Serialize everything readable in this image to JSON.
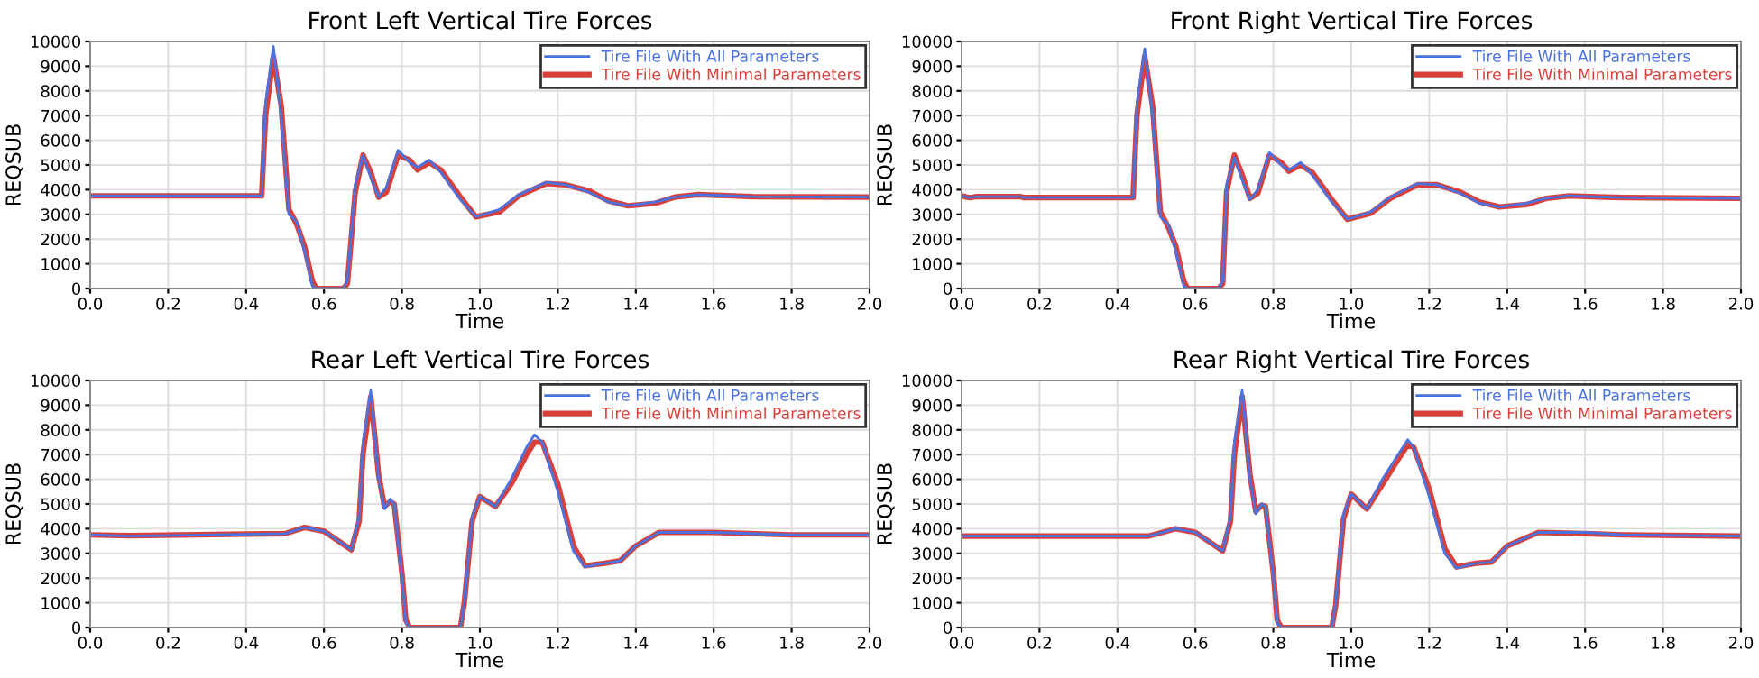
{
  "chart_data": [
    {
      "type": "line",
      "title": "Front Left Vertical Tire Forces",
      "xlabel": "Time",
      "ylabel": "REQSUB",
      "xlim": [
        0,
        2
      ],
      "ylim": [
        0,
        10000
      ],
      "xticks": [
        {
          "value": 0,
          "label": "0.0"
        },
        0.2,
        0.4,
        0.6,
        0.8,
        {
          "value": 1,
          "label": "1.0"
        },
        1.2,
        1.4,
        1.6,
        1.8,
        {
          "value": 2,
          "label": "2.0"
        }
      ],
      "yticks": [
        0,
        1000,
        2000,
        3000,
        4000,
        5000,
        6000,
        7000,
        8000,
        9000,
        10000
      ],
      "grid": true,
      "legend": "top right",
      "x": [
        0,
        0.44,
        0.45,
        0.47,
        0.49,
        0.51,
        0.53,
        0.55,
        0.57,
        0.58,
        0.65,
        0.66,
        0.68,
        0.7,
        0.72,
        0.74,
        0.76,
        0.79,
        0.82,
        0.84,
        0.87,
        0.9,
        0.95,
        0.99,
        1.05,
        1.1,
        1.17,
        1.22,
        1.28,
        1.33,
        1.38,
        1.45,
        1.5,
        1.56,
        1.65,
        1.7,
        2.0
      ],
      "series": [
        {
          "name": "Tire File With All Parameters",
          "color": "#4a72e0",
          "values": [
            3750,
            3750,
            7500,
            9800,
            7000,
            3000,
            2700,
            1500,
            100,
            0,
            0,
            300,
            4200,
            5400,
            4500,
            3700,
            4100,
            5600,
            5100,
            4900,
            5200,
            4700,
            3600,
            2900,
            3200,
            3800,
            4300,
            4200,
            3900,
            3500,
            3350,
            3500,
            3700,
            3800,
            3750,
            3720,
            3700
          ]
        },
        {
          "name": "Tire File With Minimal Parameters",
          "color": "#d9403a",
          "values": [
            3750,
            3750,
            7000,
            9400,
            7400,
            3200,
            2600,
            1700,
            300,
            0,
            0,
            200,
            3900,
            5400,
            4700,
            3700,
            3900,
            5400,
            5200,
            4800,
            5100,
            4800,
            3700,
            2900,
            3100,
            3750,
            4250,
            4200,
            3950,
            3550,
            3350,
            3450,
            3700,
            3800,
            3750,
            3720,
            3700
          ]
        }
      ]
    },
    {
      "type": "line",
      "title": "Front Right Vertical Tire Forces",
      "xlabel": "Time",
      "ylabel": "REQSUB",
      "xlim": [
        0,
        2
      ],
      "ylim": [
        0,
        10000
      ],
      "xticks": [
        {
          "value": 0,
          "label": "0.0"
        },
        0.2,
        0.4,
        0.6,
        0.8,
        {
          "value": 1,
          "label": "1.0"
        },
        1.2,
        1.4,
        1.6,
        1.8,
        {
          "value": 2,
          "label": "2.0"
        }
      ],
      "yticks": [
        0,
        1000,
        2000,
        3000,
        4000,
        5000,
        6000,
        7000,
        8000,
        9000,
        10000
      ],
      "grid": true,
      "legend": "top right",
      "x": [
        0,
        0.02,
        0.04,
        0.15,
        0.16,
        0.44,
        0.45,
        0.47,
        0.49,
        0.51,
        0.53,
        0.55,
        0.57,
        0.58,
        0.66,
        0.67,
        0.68,
        0.7,
        0.72,
        0.74,
        0.76,
        0.79,
        0.82,
        0.84,
        0.87,
        0.9,
        0.95,
        0.99,
        1.05,
        1.1,
        1.17,
        1.22,
        1.28,
        1.33,
        1.38,
        1.45,
        1.5,
        1.56,
        1.65,
        1.7,
        2.0
      ],
      "series": [
        {
          "name": "Tire File With All Parameters",
          "color": "#4a72e0",
          "values": [
            3750,
            3680,
            3720,
            3720,
            3680,
            3680,
            7500,
            9700,
            7000,
            2900,
            2600,
            1500,
            100,
            0,
            0,
            300,
            4200,
            5300,
            4400,
            3600,
            4000,
            5500,
            5000,
            4800,
            5100,
            4600,
            3500,
            2800,
            3100,
            3700,
            4250,
            4200,
            3850,
            3450,
            3300,
            3450,
            3650,
            3750,
            3700,
            3680,
            3650
          ]
        },
        {
          "name": "Tire File With Minimal Parameters",
          "color": "#d9403a",
          "values": [
            3750,
            3680,
            3720,
            3720,
            3680,
            3680,
            7000,
            9400,
            7400,
            3100,
            2500,
            1700,
            300,
            0,
            0,
            200,
            3900,
            5400,
            4600,
            3650,
            3850,
            5400,
            5100,
            4750,
            5000,
            4700,
            3600,
            2800,
            3050,
            3650,
            4200,
            4200,
            3900,
            3500,
            3300,
            3400,
            3650,
            3750,
            3700,
            3680,
            3650
          ]
        }
      ]
    },
    {
      "type": "line",
      "title": "Rear Left Vertical Tire Forces",
      "xlabel": "Time",
      "ylabel": "REQSUB",
      "xlim": [
        0,
        2
      ],
      "ylim": [
        0,
        10000
      ],
      "xticks": [
        {
          "value": 0,
          "label": "0.0"
        },
        0.2,
        0.4,
        0.6,
        0.8,
        {
          "value": 1,
          "label": "1.0"
        },
        1.2,
        1.4,
        1.6,
        1.8,
        {
          "value": 2,
          "label": "2.0"
        }
      ],
      "yticks": [
        0,
        1000,
        2000,
        3000,
        4000,
        5000,
        6000,
        7000,
        8000,
        9000,
        10000
      ],
      "grid": true,
      "legend": "top right",
      "x": [
        0,
        0.1,
        0.5,
        0.55,
        0.6,
        0.67,
        0.69,
        0.7,
        0.72,
        0.74,
        0.755,
        0.77,
        0.78,
        0.8,
        0.81,
        0.82,
        0.95,
        0.96,
        0.98,
        1.0,
        1.04,
        1.08,
        1.12,
        1.14,
        1.16,
        1.2,
        1.24,
        1.27,
        1.32,
        1.36,
        1.4,
        1.46,
        1.6,
        1.8,
        2.0
      ],
      "series": [
        {
          "name": "Tire File With All Parameters",
          "color": "#4a72e0",
          "values": [
            3750,
            3700,
            3800,
            4050,
            3900,
            3150,
            4500,
            7500,
            9600,
            6000,
            4800,
            5200,
            5000,
            2000,
            200,
            0,
            0,
            1000,
            4500,
            5300,
            4900,
            6000,
            7300,
            7800,
            7500,
            5500,
            3100,
            2450,
            2600,
            2700,
            3300,
            3850,
            3850,
            3750,
            3750
          ]
        },
        {
          "name": "Tire File With Minimal Parameters",
          "color": "#d9403a",
          "values": [
            3750,
            3720,
            3800,
            4050,
            3900,
            3150,
            4300,
            7000,
            9350,
            6200,
            4900,
            5100,
            5000,
            2200,
            300,
            0,
            0,
            1000,
            4300,
            5300,
            4900,
            5800,
            7000,
            7500,
            7500,
            5800,
            3300,
            2500,
            2600,
            2700,
            3300,
            3850,
            3850,
            3750,
            3750
          ]
        }
      ]
    },
    {
      "type": "line",
      "title": "Rear Right Vertical Tire Forces",
      "xlabel": "Time",
      "ylabel": "REQSUB",
      "xlim": [
        0,
        2
      ],
      "ylim": [
        0,
        10000
      ],
      "xticks": [
        {
          "value": 0,
          "label": "0.0"
        },
        0.2,
        0.4,
        0.6,
        0.8,
        {
          "value": 1,
          "label": "1.0"
        },
        1.2,
        1.4,
        1.6,
        1.8,
        {
          "value": 2,
          "label": "2.0"
        }
      ],
      "yticks": [
        0,
        1000,
        2000,
        3000,
        4000,
        5000,
        6000,
        7000,
        8000,
        9000,
        10000
      ],
      "grid": true,
      "legend": "top right",
      "x": [
        0,
        0.1,
        0.48,
        0.55,
        0.6,
        0.67,
        0.69,
        0.7,
        0.72,
        0.74,
        0.755,
        0.77,
        0.78,
        0.8,
        0.81,
        0.82,
        0.95,
        0.96,
        0.98,
        1.0,
        1.04,
        1.08,
        1.12,
        1.145,
        1.16,
        1.2,
        1.24,
        1.27,
        1.32,
        1.36,
        1.4,
        1.48,
        1.6,
        1.7,
        2.0
      ],
      "series": [
        {
          "name": "Tire File With All Parameters",
          "color": "#4a72e0",
          "values": [
            3700,
            3700,
            3700,
            4000,
            3850,
            3100,
            4500,
            7500,
            9600,
            6000,
            4600,
            5000,
            4900,
            2000,
            200,
            0,
            0,
            1000,
            4600,
            5400,
            4800,
            6000,
            7000,
            7600,
            7300,
            5300,
            3000,
            2400,
            2600,
            2650,
            3300,
            3850,
            3850,
            3750,
            3700
          ]
        },
        {
          "name": "Tire File With Minimal Parameters",
          "color": "#d9403a",
          "values": [
            3700,
            3700,
            3700,
            4000,
            3850,
            3100,
            4300,
            7000,
            9350,
            6200,
            4700,
            4950,
            4900,
            2200,
            300,
            0,
            0,
            900,
            4400,
            5400,
            4800,
            5800,
            6800,
            7400,
            7300,
            5600,
            3200,
            2450,
            2600,
            2650,
            3300,
            3850,
            3800,
            3750,
            3700
          ]
        }
      ]
    }
  ]
}
